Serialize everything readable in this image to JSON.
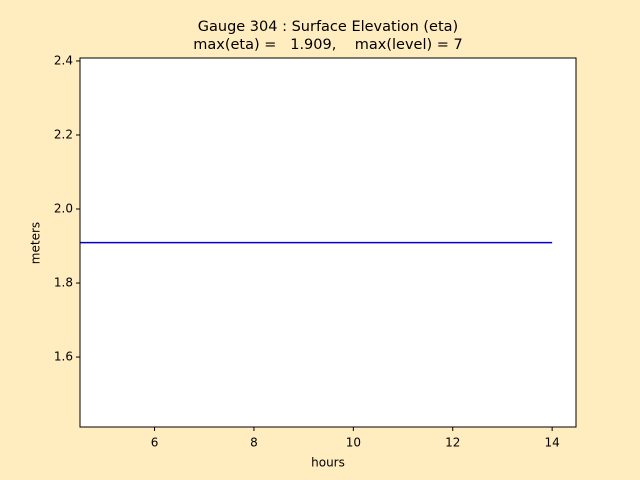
{
  "chart_data": {
    "type": "line",
    "title": [
      "Gauge 304 : Surface Elevation (eta)",
      "max(eta) =   1.909,    max(level) = 7"
    ],
    "x_label": "hours",
    "y_label": "meters",
    "x": [
      4.5,
      14
    ],
    "series": [
      {
        "color": "#0000cc",
        "values": [
          1.909,
          1.909
        ]
      }
    ],
    "xlim": [
      4.5,
      14.48
    ],
    "xticks": [
      6,
      8,
      10,
      12,
      14
    ],
    "ylim": [
      1.411,
      2.408
    ],
    "yticks": [
      1.6,
      1.8,
      {
        "value": 2,
        "label": "2.0"
      },
      2.2,
      2.4
    ]
  }
}
